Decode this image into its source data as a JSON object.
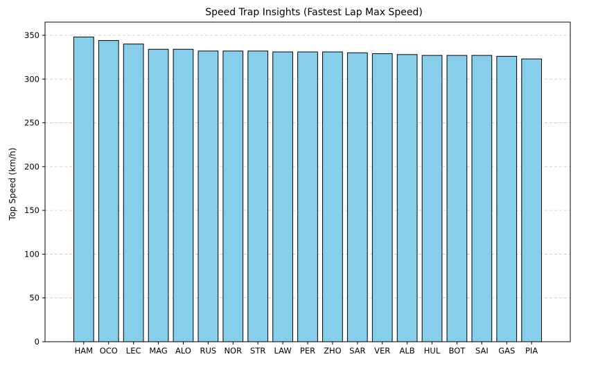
{
  "chart_data": {
    "type": "bar",
    "title": "Speed Trap Insights (Fastest Lap Max Speed)",
    "xlabel": "",
    "ylabel": "Top Speed (km/h)",
    "categories": [
      "HAM",
      "OCO",
      "LEC",
      "MAG",
      "ALO",
      "RUS",
      "NOR",
      "STR",
      "LAW",
      "PER",
      "ZHO",
      "SAR",
      "VER",
      "ALB",
      "HUL",
      "BOT",
      "SAI",
      "GAS",
      "PIA"
    ],
    "values": [
      348,
      344,
      340,
      334,
      334,
      332,
      332,
      332,
      331,
      331,
      331,
      330,
      329,
      328,
      327,
      327,
      327,
      326,
      323
    ],
    "ylim": [
      0,
      365
    ],
    "yticks": [
      "0",
      "50",
      "100",
      "150",
      "200",
      "250",
      "300",
      "350"
    ],
    "grid": "y-dashed",
    "legend": "none",
    "colors": {
      "bar_fill": "#87ceeb",
      "bar_edge": "#000000",
      "grid": "#c8c8c8",
      "axis": "#000000"
    }
  }
}
